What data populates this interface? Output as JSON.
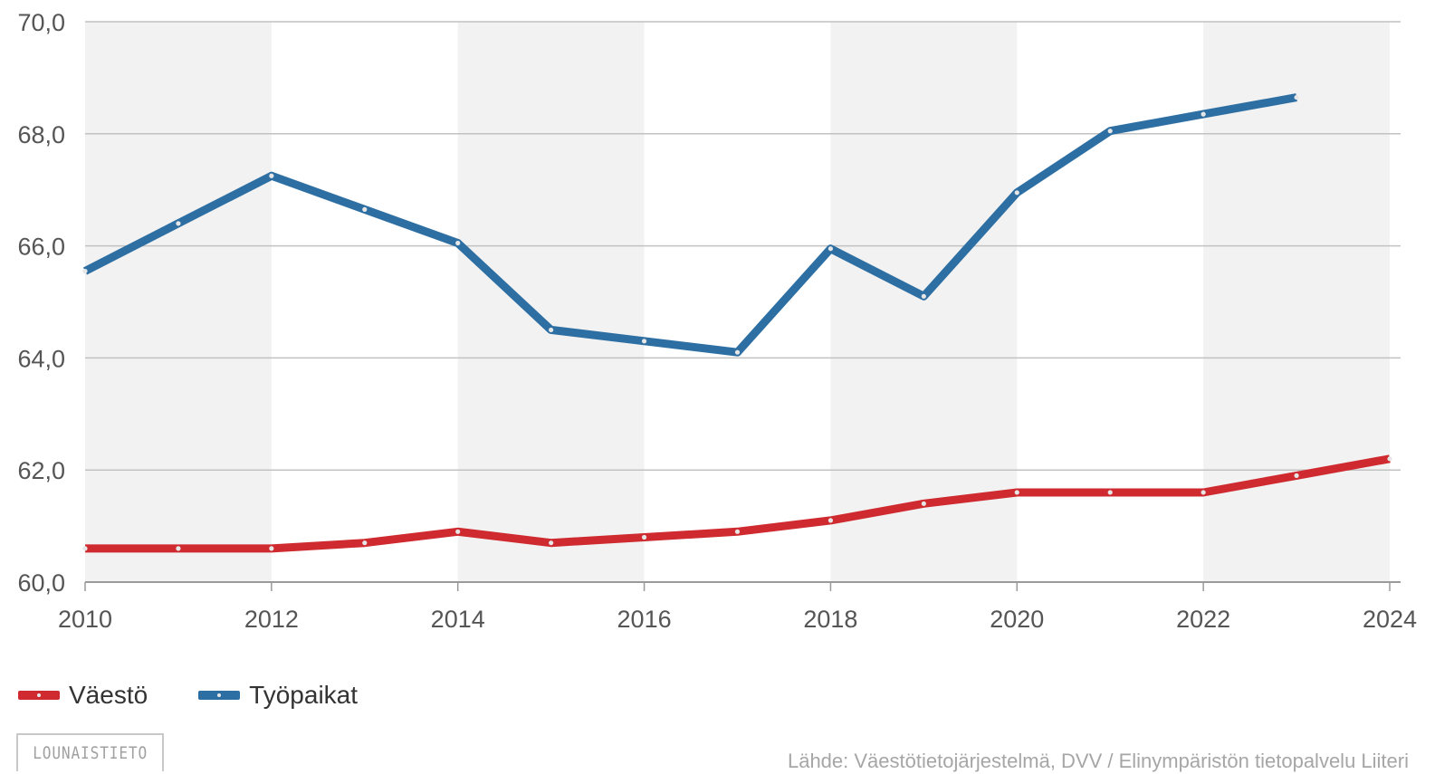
{
  "chart_data": {
    "type": "line",
    "x": [
      2010,
      2011,
      2012,
      2013,
      2014,
      2015,
      2016,
      2017,
      2018,
      2019,
      2020,
      2021,
      2022,
      2023,
      2024
    ],
    "xticks": [
      "2010",
      "2012",
      "2014",
      "2016",
      "2018",
      "2020",
      "2022",
      "2024"
    ],
    "yticks": [
      "60,0",
      "62,0",
      "64,0",
      "66,0",
      "68,0",
      "70,0"
    ],
    "ylim": [
      60,
      70
    ],
    "xlim": [
      2010,
      2024
    ],
    "grid": "horizontal",
    "background": "alternating vertical bands per two years",
    "legend_position": "bottom-left",
    "series": [
      {
        "name": "Väestö",
        "color": "#cf2a2f",
        "values": [
          60.6,
          60.6,
          60.6,
          60.7,
          60.9,
          60.7,
          60.8,
          60.9,
          61.1,
          61.4,
          61.6,
          61.6,
          61.6,
          61.9,
          62.2
        ]
      },
      {
        "name": "Työpaikat",
        "color": "#2e6fa3",
        "values": [
          65.55,
          66.4,
          67.25,
          66.65,
          66.05,
          64.5,
          64.3,
          64.1,
          65.95,
          65.1,
          66.95,
          68.05,
          68.35,
          68.65,
          null
        ]
      }
    ]
  },
  "logo_text": "LOUNAISTIETO",
  "source_text": "Lähde: Väestötietojärjestelmä, DVV / Elinympäristön tietopalvelu Liiteri"
}
